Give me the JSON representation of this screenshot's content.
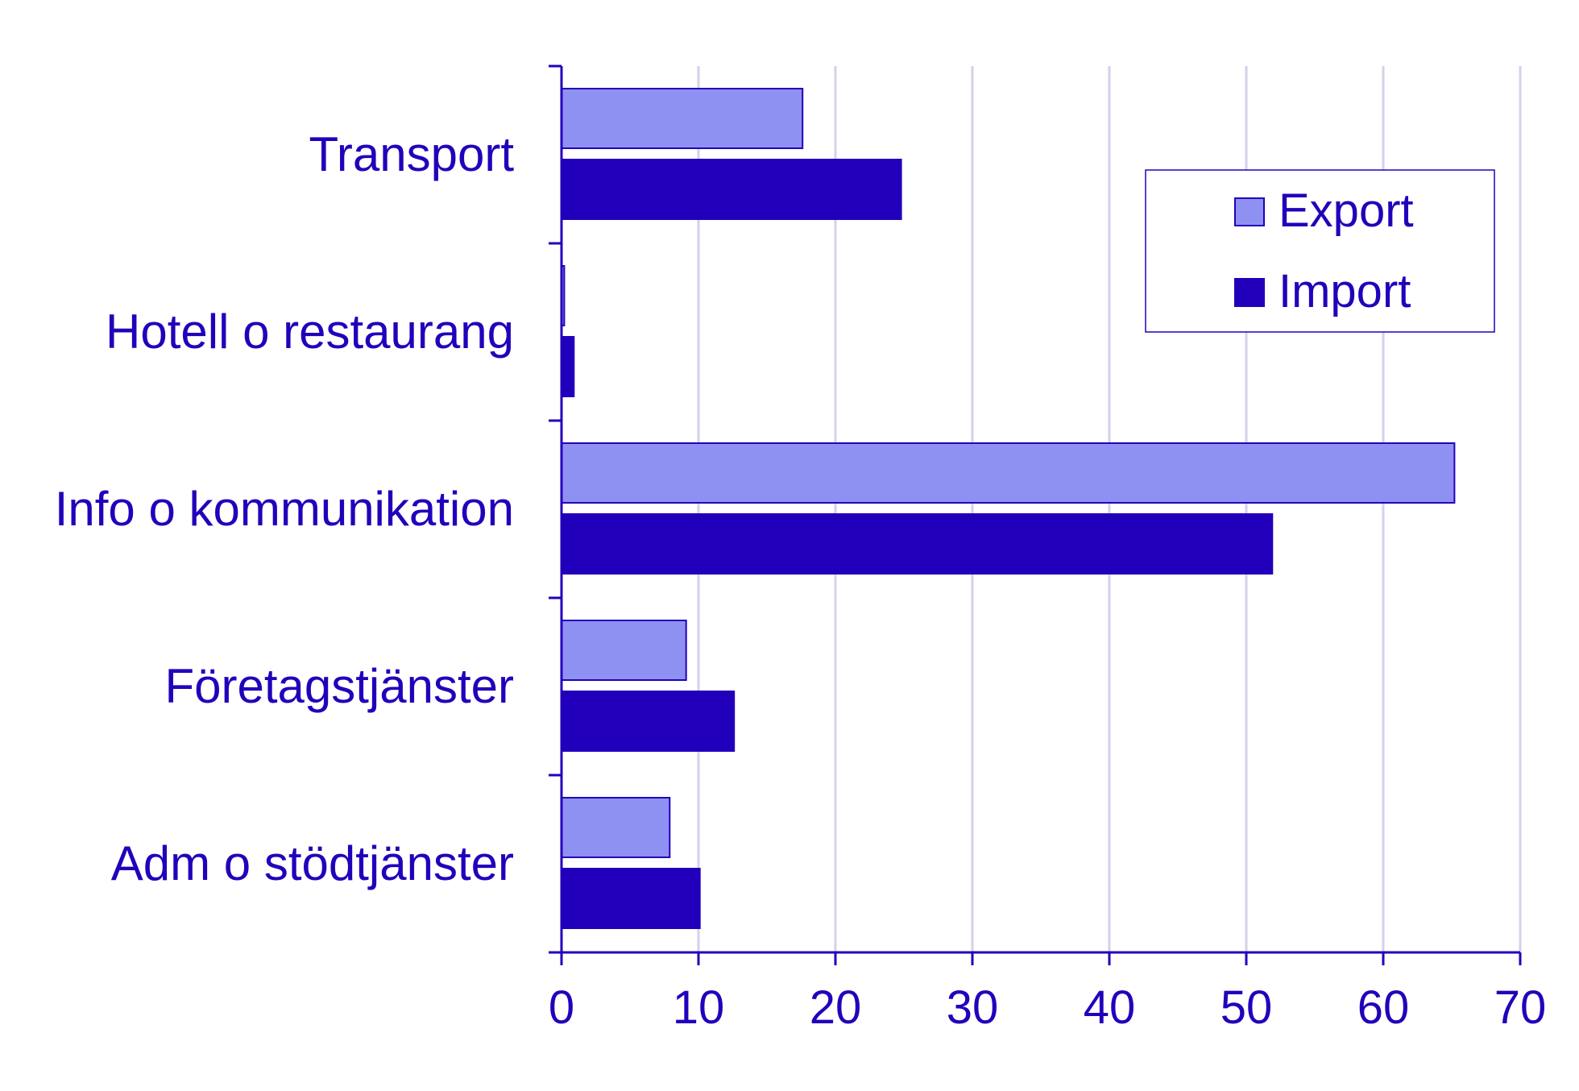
{
  "colors": {
    "export": "#8f91f2",
    "import": "#2200bb",
    "axis": "#2200bb",
    "grid": "#d2d2ec",
    "text": "#2200bb"
  },
  "legend": {
    "export_label": "Export",
    "import_label": "Import",
    "position": "top-right"
  },
  "chart_data": {
    "type": "bar",
    "orientation": "horizontal",
    "categories": [
      "Transport",
      "Hotell o restaurang",
      "Info o kommunikation",
      "Företagstjänster",
      "Adm o stödtjänster"
    ],
    "series": [
      {
        "name": "Export",
        "values": [
          17.6,
          0.2,
          65.2,
          9.1,
          7.9
        ]
      },
      {
        "name": "Import",
        "values": [
          24.8,
          0.9,
          51.9,
          12.6,
          10.1
        ]
      }
    ],
    "xlim": [
      0,
      70
    ],
    "xticks": [
      "0",
      "10",
      "20",
      "30",
      "40",
      "50",
      "60",
      "70"
    ],
    "grid": "vertical",
    "title": "",
    "xlabel": "",
    "ylabel": ""
  }
}
